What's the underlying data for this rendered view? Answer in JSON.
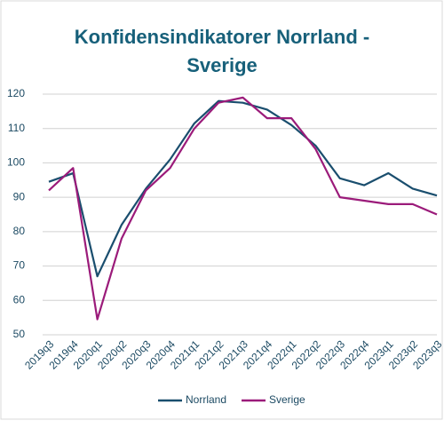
{
  "chart_data": {
    "type": "line",
    "title": "Konfidensindikatorer Norrland - Sverige",
    "categories": [
      "2019q3",
      "2019q4",
      "2020q1",
      "2020q2",
      "2020q3",
      "2020q4",
      "2021q1",
      "2021q2",
      "2021q3",
      "2021q4",
      "2022q1",
      "2022q2",
      "2022q3",
      "2022q4",
      "2023q1",
      "2023q2",
      "2023q3"
    ],
    "series": [
      {
        "name": "Norrland",
        "color": "#1a4e6e",
        "values": [
          94.5,
          97,
          67,
          82,
          92.5,
          101,
          111.5,
          118,
          117.5,
          115.5,
          111,
          105,
          95.5,
          93.5,
          97,
          92.5,
          90.5
        ]
      },
      {
        "name": "Sverige",
        "color": "#9b1b7a",
        "values": [
          92,
          98.5,
          54.5,
          78,
          92,
          98.5,
          110,
          117.5,
          119,
          113,
          113,
          104,
          90,
          89,
          88,
          88,
          85
        ]
      }
    ],
    "ylim": [
      50,
      120
    ],
    "yticks": [
      50,
      60,
      70,
      80,
      90,
      100,
      110,
      120
    ],
    "grid": true,
    "legend": "bottom"
  }
}
